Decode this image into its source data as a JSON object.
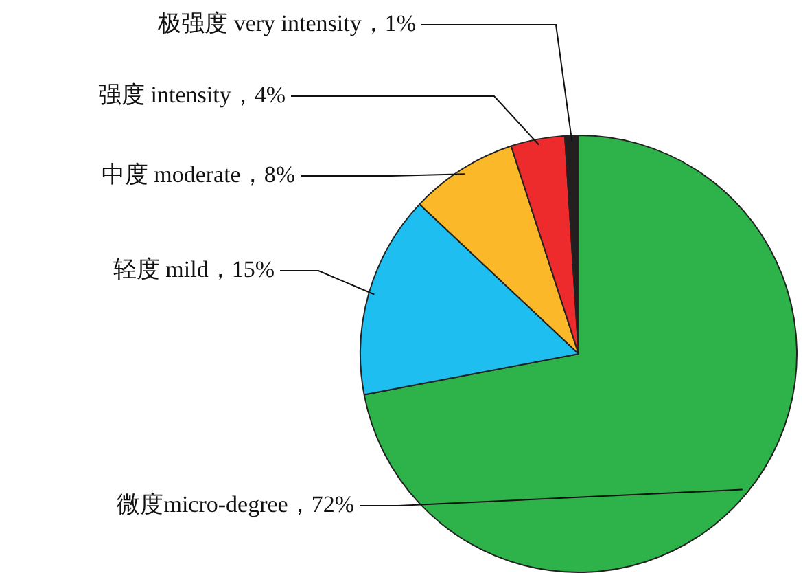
{
  "chart_data": {
    "type": "pie",
    "categories": [
      "微度micro-degree",
      "轻度 mild",
      "中度 moderate",
      "强度 intensity",
      "极强度 very intensity"
    ],
    "values": [
      72,
      15,
      8,
      4,
      1
    ],
    "value_labels": [
      "72%",
      "15%",
      "8%",
      "4%",
      "1%"
    ],
    "colors": [
      "#2eb34b",
      "#1fbef0",
      "#fbb829",
      "#ed2a2c",
      "#231f20"
    ],
    "legend": false
  }
}
